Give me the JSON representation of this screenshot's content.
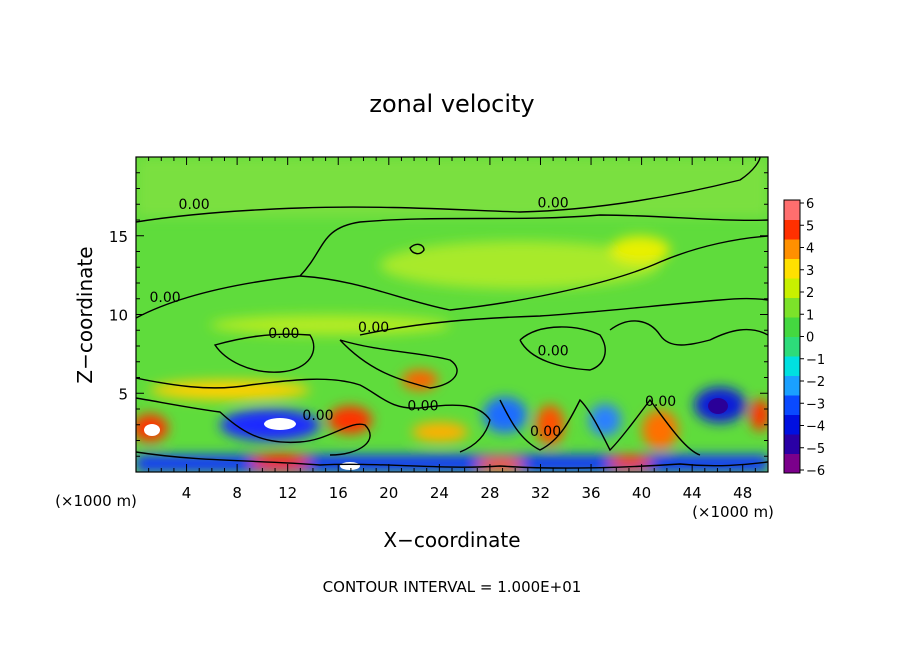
{
  "chart_data": {
    "type": "heatmap",
    "title": "zonal velocity",
    "xlabel": "X−coordinate",
    "ylabel": "Z−coordinate",
    "x_unit_left": "(×1000 m)",
    "x_unit_right": "(×1000 m)",
    "xlim": [
      0,
      50
    ],
    "ylim": [
      0,
      20
    ],
    "x_ticks": [
      4,
      8,
      12,
      16,
      20,
      24,
      28,
      32,
      36,
      40,
      44,
      48
    ],
    "y_ticks": [
      5,
      10,
      15
    ],
    "colorbar": {
      "ticks": [
        6,
        5,
        4,
        3,
        2,
        1,
        0,
        -1,
        -2,
        -3,
        -4,
        -5,
        -6
      ],
      "tick_labels": [
        "6",
        "5",
        "4",
        "3",
        "2",
        "1",
        "0",
        "−1",
        "−2",
        "−3",
        "−4",
        "−5",
        "−6"
      ],
      "range": [
        -6,
        6
      ],
      "colors": [
        "#7b008b",
        "#2a00a5",
        "#0010e0",
        "#0a4aff",
        "#1aa0ff",
        "#00e0e0",
        "#2ddc7a",
        "#44d840",
        "#7ce22a",
        "#c8f000",
        "#ffe000",
        "#ff9000",
        "#ff3000",
        "#ff6e6e"
      ]
    },
    "contour_labels": [
      {
        "text": "0.00",
        "x": 4.6,
        "y": 16.7
      },
      {
        "text": "0.00",
        "x": 33.0,
        "y": 16.8
      },
      {
        "text": "0.00",
        "x": 2.3,
        "y": 10.8
      },
      {
        "text": "0.00",
        "x": 11.7,
        "y": 8.5
      },
      {
        "text": "0.00",
        "x": 18.8,
        "y": 8.9
      },
      {
        "text": "0.00",
        "x": 33.0,
        "y": 7.4
      },
      {
        "text": "0.00",
        "x": 22.7,
        "y": 3.9
      },
      {
        "text": "0.00",
        "x": 14.4,
        "y": 3.3
      },
      {
        "text": "0.00",
        "x": 32.4,
        "y": 2.3
      },
      {
        "text": "0.00",
        "x": 41.5,
        "y": 4.2
      }
    ],
    "footer": "CONTOUR INTERVAL = 1.000E+01"
  }
}
